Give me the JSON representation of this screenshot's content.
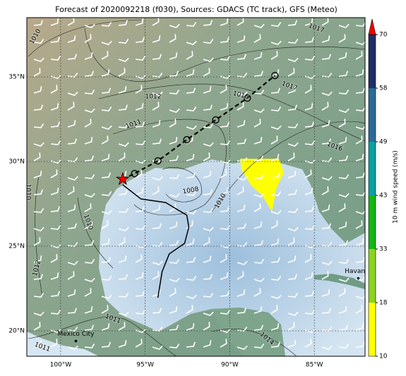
{
  "title": "Forecast of 2020092218 (f030), Sources: GDACS (TC track), GFS (Meteo)",
  "map": {
    "lon_range": [
      -102,
      -82
    ],
    "lat_range": [
      18.5,
      38.5
    ],
    "lon_ticks": [
      {
        "value": -100,
        "label": "100°W"
      },
      {
        "value": -95,
        "label": "95°W"
      },
      {
        "value": -90,
        "label": "90°W"
      },
      {
        "value": -85,
        "label": "85°W"
      }
    ],
    "lat_ticks": [
      {
        "value": 20,
        "label": "20°N"
      },
      {
        "value": 25,
        "label": "25°N"
      },
      {
        "value": 30,
        "label": "30°N"
      },
      {
        "value": 35,
        "label": "35°N"
      }
    ],
    "contour_labels": [
      1010,
      1017,
      1017,
      1012,
      1016,
      1011,
      1016,
      1008,
      1010,
      1010,
      1010,
      1012,
      1011,
      1011,
      1014
    ],
    "cities": [
      {
        "name": "Mexico City",
        "lon": -99.1,
        "lat": 19.4
      },
      {
        "name": "Havana",
        "lon": -82.4,
        "lat": 23.1
      }
    ],
    "forecast_track": {
      "lon": [
        -96.33,
        -95.63,
        -94.25,
        -92.54,
        -90.83,
        -88.96,
        -87.33
      ],
      "lat": [
        28.96,
        29.29,
        30.04,
        31.29,
        32.46,
        33.75,
        35.08
      ]
    },
    "past_track": {
      "lon": [
        -96.33,
        -95.25,
        -93.79,
        -92.54,
        -92.42,
        -92.67,
        -93.58,
        -94.0,
        -94.25
      ],
      "lat": [
        28.63,
        27.79,
        27.58,
        26.83,
        26.13,
        25.17,
        24.54,
        23.5,
        21.96
      ]
    }
  },
  "colorbar": {
    "label": "10 m wind speed (m/s)",
    "ticks": [
      10,
      18,
      33,
      43,
      49,
      58,
      70
    ],
    "colors": [
      "#ffff00",
      "#8cd21e",
      "#14b414",
      "#0aa0a0",
      "#2a6a96",
      "#1f2f66"
    ]
  }
}
